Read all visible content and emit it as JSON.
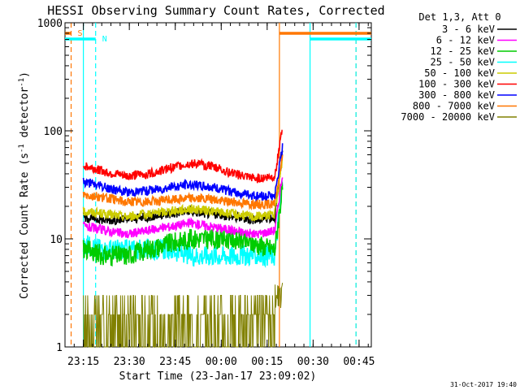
{
  "chart_data": {
    "type": "line",
    "title": "HESSI Observing Summary Count Rates, Corrected",
    "xlabel": "Start Time (23-Jan-17 23:09:02)",
    "ylabel": "Corrected Count Rate (s",
    "ylabel_sup1": "-1",
    "ylabel_mid": " detector",
    "ylabel_sup2": "-1",
    "ylabel_end": ")",
    "yscale": "log",
    "ylim": [
      1,
      1000
    ],
    "xlim_minutes": [
      0,
      100
    ],
    "x_ticks": [
      {
        "minute": 6,
        "label": "23:15"
      },
      {
        "minute": 21,
        "label": "23:30"
      },
      {
        "minute": 36,
        "label": "23:45"
      },
      {
        "minute": 51,
        "label": "00:00"
      },
      {
        "minute": 66,
        "label": "00:15"
      },
      {
        "minute": 81,
        "label": "00:30"
      },
      {
        "minute": 96,
        "label": "00:45"
      }
    ],
    "y_ticks": [
      {
        "value": 1,
        "label": "1"
      },
      {
        "value": 10,
        "label": "10"
      },
      {
        "value": 100,
        "label": "100"
      },
      {
        "value": 1000,
        "label": "1000"
      }
    ],
    "legend_title": "Det 1,3, Att 0",
    "footer_date": "31-Oct-2017 19:40",
    "series": [
      {
        "name": "3 - 6 keV",
        "color": "#000000",
        "values": [
          16,
          15,
          15,
          16,
          17,
          18,
          17,
          16,
          15,
          16,
          60
        ]
      },
      {
        "name": "6 - 12 keV",
        "color": "#ff00ff",
        "values": [
          13,
          12,
          11,
          12,
          13,
          14,
          13,
          12,
          11,
          12,
          40
        ]
      },
      {
        "name": "12 - 25 keV",
        "color": "#00cc00",
        "values": [
          8,
          7,
          7,
          8,
          9,
          10,
          10,
          10,
          9,
          8,
          30
        ]
      },
      {
        "name": "25 - 50 keV",
        "color": "#00ffff",
        "values": [
          9,
          8,
          8,
          8,
          8,
          7,
          7,
          7,
          7,
          7,
          35
        ]
      },
      {
        "name": "50 - 100 keV",
        "color": "#cccc00",
        "values": [
          18,
          17,
          16,
          17,
          18,
          19,
          18,
          17,
          16,
          17,
          55
        ]
      },
      {
        "name": "100 - 300 keV",
        "color": "#ff0000",
        "values": [
          48,
          42,
          38,
          40,
          45,
          50,
          47,
          40,
          36,
          38,
          105
        ]
      },
      {
        "name": "300 - 800 keV",
        "color": "#0000ff",
        "values": [
          34,
          30,
          27,
          28,
          30,
          32,
          30,
          27,
          25,
          25,
          70
        ]
      },
      {
        "name": "800 - 7000 keV",
        "color": "#ff7700",
        "values": [
          26,
          24,
          22,
          22,
          23,
          24,
          23,
          22,
          21,
          21,
          60
        ]
      },
      {
        "name": "7000 - 20000 keV",
        "color": "#808000",
        "values": [
          2,
          1,
          1,
          1,
          1,
          2,
          2,
          2,
          2,
          1,
          4
        ]
      }
    ],
    "series_minutes": [
      6,
      13,
      20,
      27,
      34,
      41,
      48,
      55,
      62,
      68.5,
      71
    ],
    "flags": [
      {
        "label": "S",
        "color": "#ff7700",
        "minute_start": 0,
        "minute_end": 2
      },
      {
        "label": "N",
        "color": "#00ffff",
        "minute_start": 0,
        "minute_end": 10
      },
      {
        "label": "",
        "color": "#ff7700",
        "minute_start": 70,
        "minute_end": 100
      },
      {
        "label": "",
        "color": "#00ffff",
        "minute_start": 80,
        "minute_end": 100
      }
    ],
    "vertical_markers": [
      {
        "minute": 2,
        "color": "#ff7700",
        "dash": true
      },
      {
        "minute": 6,
        "color": "#00ffff",
        "dash": false
      },
      {
        "minute": 10,
        "color": "#00ffff",
        "dash": true
      },
      {
        "minute": 70,
        "color": "#ff7700",
        "dash": false
      },
      {
        "minute": 80,
        "color": "#00ffff",
        "dash": false
      },
      {
        "minute": 95,
        "color": "#ff7700",
        "dash": true
      },
      {
        "minute": 95,
        "color": "#00ffff",
        "dash": true
      }
    ]
  }
}
